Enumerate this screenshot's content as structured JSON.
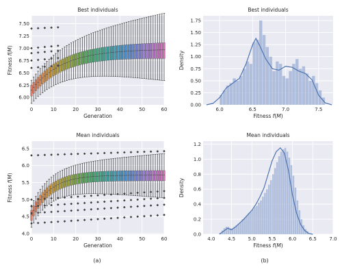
{
  "figure_labels": [
    "(a)",
    "(b)"
  ],
  "chart_data": [
    {
      "id": "box_best",
      "type": "box",
      "title": "Best individuals",
      "xlabel": "Generation",
      "ylabel": "Fitness f(M)",
      "xlim": [
        0,
        60
      ],
      "ylim": [
        5.85,
        7.66
      ],
      "xticks": [
        0,
        10,
        20,
        30,
        40,
        50,
        60
      ],
      "yticks": [
        6.0,
        6.25,
        6.5,
        6.75,
        7.0,
        7.25,
        7.5
      ],
      "ytick_labels": [
        "6.00",
        "6.25",
        "6.50",
        "6.75",
        "7.00",
        "7.25",
        "7.50"
      ],
      "grid": true,
      "n_generations": 61,
      "median": {
        "start": 6.15,
        "end": 6.98,
        "rate": 0.07
      },
      "iqr": {
        "start": 0.22,
        "end": 0.32
      },
      "whisker_low": {
        "start": 0.15,
        "end": 0.45
      },
      "whisker_high": {
        "start": 0.1,
        "end": 0.6
      },
      "outlier_band": {
        "generations": [
          0,
          12
        ],
        "values": [
          6.6,
          6.75,
          6.9,
          7.0,
          7.4
        ]
      }
    },
    {
      "id": "hist_best",
      "type": "histogram",
      "title": "Best individuals",
      "xlabel": "Fitness f(M)",
      "ylabel": "Density",
      "xlim": [
        5.75,
        7.72
      ],
      "ylim": [
        0,
        1.85
      ],
      "xticks": [
        6.0,
        6.5,
        7.0,
        7.5
      ],
      "xtick_labels": [
        "6.0",
        "6.5",
        "7.0",
        "7.5"
      ],
      "yticks": [
        0,
        0.25,
        0.5,
        0.75,
        1.0,
        1.25,
        1.5,
        1.75
      ],
      "ytick_labels": [
        "0.00",
        "0.25",
        "0.50",
        "0.75",
        "1.00",
        "1.25",
        "1.50",
        "1.75"
      ],
      "grid": true,
      "bin_start": 6.0,
      "bin_width": 0.05,
      "densities": [
        0.2,
        0.3,
        0.4,
        0.45,
        0.55,
        0.5,
        0.6,
        0.75,
        0.9,
        0.85,
        1.3,
        1.35,
        1.75,
        1.45,
        1.2,
        1.0,
        0.7,
        0.9,
        0.85,
        0.6,
        0.55,
        0.7,
        0.85,
        0.95,
        0.75,
        0.8,
        0.65,
        0.5,
        0.6,
        0.45,
        0.3,
        0.15
      ],
      "kde": [
        [
          5.8,
          0.0
        ],
        [
          5.9,
          0.03
        ],
        [
          6.0,
          0.15
        ],
        [
          6.1,
          0.35
        ],
        [
          6.2,
          0.45
        ],
        [
          6.3,
          0.55
        ],
        [
          6.4,
          0.85
        ],
        [
          6.5,
          1.25
        ],
        [
          6.55,
          1.38
        ],
        [
          6.6,
          1.25
        ],
        [
          6.7,
          0.95
        ],
        [
          6.8,
          0.75
        ],
        [
          6.9,
          0.72
        ],
        [
          7.0,
          0.8
        ],
        [
          7.1,
          0.78
        ],
        [
          7.2,
          0.7
        ],
        [
          7.3,
          0.65
        ],
        [
          7.4,
          0.52
        ],
        [
          7.5,
          0.2
        ],
        [
          7.6,
          0.04
        ],
        [
          7.7,
          0.0
        ]
      ]
    },
    {
      "id": "box_mean",
      "type": "box",
      "title": "Mean individuals",
      "xlabel": "Generation",
      "ylabel": "Fitness f(M)",
      "xlim": [
        0,
        60
      ],
      "ylim": [
        3.98,
        6.72
      ],
      "xticks": [
        0,
        10,
        20,
        30,
        40,
        50,
        60
      ],
      "yticks": [
        4.0,
        4.5,
        5.0,
        5.5,
        6.0,
        6.5
      ],
      "ytick_labels": [
        "4.0",
        "4.5",
        "5.0",
        "5.5",
        "6.0",
        "6.5"
      ],
      "grid": true,
      "n_generations": 61,
      "median": {
        "start": 4.55,
        "end": 5.72,
        "rate": 0.12
      },
      "iqr": {
        "start": 0.3,
        "end": 0.3
      },
      "whisker_low": {
        "start": 0.2,
        "end": 0.5
      },
      "whisker_high": {
        "start": 0.15,
        "end": 0.5
      },
      "outlier_band": {
        "generations": [
          0,
          60
        ],
        "values": [
          4.3,
          4.6,
          4.8,
          5.0,
          6.3
        ]
      }
    },
    {
      "id": "hist_mean",
      "type": "histogram",
      "title": "Mean individuals",
      "xlabel": "Fitness f(M)",
      "ylabel": "Density",
      "xlim": [
        3.8,
        7.0
      ],
      "ylim": [
        0,
        1.24
      ],
      "xticks": [
        4.0,
        4.5,
        5.0,
        5.5,
        6.0,
        6.5,
        7.0
      ],
      "xtick_labels": [
        "4.0",
        "4.5",
        "5.0",
        "5.5",
        "6.0",
        "6.5",
        "7.0"
      ],
      "yticks": [
        0,
        0.2,
        0.4,
        0.6,
        0.8,
        1.0,
        1.2
      ],
      "ytick_labels": [
        "0.0",
        "0.2",
        "0.4",
        "0.6",
        "0.8",
        "1.0",
        "1.2"
      ],
      "grid": true,
      "bin_start": 4.2,
      "bin_width": 0.05,
      "densities": [
        0.02,
        0.05,
        0.08,
        0.1,
        0.1,
        0.08,
        0.08,
        0.1,
        0.12,
        0.14,
        0.16,
        0.2,
        0.22,
        0.25,
        0.28,
        0.3,
        0.33,
        0.36,
        0.38,
        0.42,
        0.45,
        0.5,
        0.55,
        0.6,
        0.66,
        0.72,
        0.8,
        0.88,
        0.96,
        1.04,
        1.1,
        1.13,
        1.15,
        1.1,
        1.02,
        0.92,
        0.78,
        0.62,
        0.45,
        0.32,
        0.2,
        0.12,
        0.07,
        0.04
      ],
      "kde": [
        [
          4.2,
          0.0
        ],
        [
          4.3,
          0.04
        ],
        [
          4.4,
          0.08
        ],
        [
          4.5,
          0.06
        ],
        [
          4.6,
          0.1
        ],
        [
          4.7,
          0.15
        ],
        [
          4.8,
          0.2
        ],
        [
          4.9,
          0.26
        ],
        [
          5.0,
          0.32
        ],
        [
          5.1,
          0.4
        ],
        [
          5.2,
          0.5
        ],
        [
          5.3,
          0.62
        ],
        [
          5.4,
          0.8
        ],
        [
          5.5,
          0.98
        ],
        [
          5.6,
          1.1
        ],
        [
          5.7,
          1.15
        ],
        [
          5.8,
          1.08
        ],
        [
          5.9,
          0.85
        ],
        [
          6.0,
          0.52
        ],
        [
          6.1,
          0.28
        ],
        [
          6.2,
          0.13
        ],
        [
          6.3,
          0.05
        ],
        [
          6.4,
          0.01
        ],
        [
          6.5,
          0.0
        ]
      ]
    }
  ]
}
